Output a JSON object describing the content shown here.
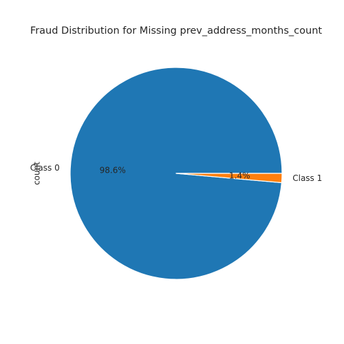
{
  "chart_data": {
    "type": "pie",
    "title": "Fraud Distribution for Missing prev_address_months_count",
    "ylabel": "count",
    "categories": [
      "Class 0",
      "Class 1"
    ],
    "values": [
      98.6,
      1.4
    ],
    "percent_labels": [
      "98.6%",
      "1.4%"
    ],
    "colors": [
      "#1f77b4",
      "#ff7f0e"
    ],
    "start_angle": 0,
    "direction": "counterclockwise",
    "legend": "none"
  }
}
